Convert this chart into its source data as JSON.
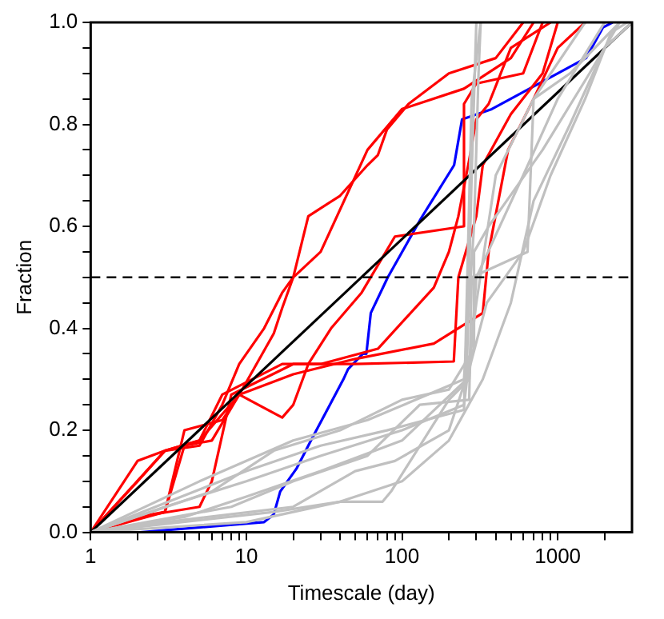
{
  "chart_data": {
    "type": "line",
    "xlabel": "Timescale (day)",
    "ylabel": "Fraction",
    "log": "x",
    "grid": false,
    "legend": false,
    "marker": "none",
    "line_style": "solid",
    "xlim": [
      1,
      3000
    ],
    "ylim": [
      0,
      1
    ],
    "xticks": [
      1,
      {
        "value": 2,
        "label": null
      },
      {
        "value": 3,
        "label": null
      },
      {
        "value": 4,
        "label": null
      },
      {
        "value": 5,
        "label": null
      },
      {
        "value": 6,
        "label": null
      },
      {
        "value": 7,
        "label": null
      },
      {
        "value": 8,
        "label": null
      },
      {
        "value": 9,
        "label": null
      },
      10,
      {
        "value": 20,
        "label": null
      },
      {
        "value": 30,
        "label": null
      },
      {
        "value": 40,
        "label": null
      },
      {
        "value": 50,
        "label": null
      },
      {
        "value": 60,
        "label": null
      },
      {
        "value": 70,
        "label": null
      },
      {
        "value": 80,
        "label": null
      },
      {
        "value": 90,
        "label": null
      },
      100,
      {
        "value": 200,
        "label": null
      },
      {
        "value": 300,
        "label": null
      },
      {
        "value": 400,
        "label": null
      },
      {
        "value": 500,
        "label": null
      },
      {
        "value": 600,
        "label": null
      },
      {
        "value": 700,
        "label": null
      },
      {
        "value": 800,
        "label": null
      },
      {
        "value": 900,
        "label": null
      },
      1000,
      {
        "value": 2000,
        "label": null
      }
    ],
    "yticks": [
      {
        "value": 0,
        "label": "0.0"
      },
      {
        "value": 0.05,
        "label": null
      },
      {
        "value": 0.1,
        "label": null
      },
      {
        "value": 0.15,
        "label": null
      },
      {
        "value": 0.2,
        "label": "0.2"
      },
      {
        "value": 0.25,
        "label": null
      },
      {
        "value": 0.3,
        "label": null
      },
      {
        "value": 0.35,
        "label": null
      },
      {
        "value": 0.4,
        "label": "0.4"
      },
      {
        "value": 0.45,
        "label": null
      },
      {
        "value": 0.5,
        "label": null
      },
      {
        "value": 0.55,
        "label": null
      },
      {
        "value": 0.6,
        "label": "0.6"
      },
      {
        "value": 0.65,
        "label": null
      },
      {
        "value": 0.7,
        "label": null
      },
      {
        "value": 0.75,
        "label": null
      },
      {
        "value": 0.8,
        "label": "0.8"
      },
      {
        "value": 0.85,
        "label": null
      },
      {
        "value": 0.9,
        "label": null
      },
      {
        "value": 0.95,
        "label": null
      },
      {
        "value": 1.0,
        "label": "1.0"
      }
    ],
    "ref_lines": [
      {
        "axis": "y",
        "value": 0.5,
        "color": "#000000",
        "line_style": "dashed"
      }
    ],
    "series": [
      {
        "color": "#c0c0c0",
        "x": [
          1,
          3,
          10,
          30,
          100,
          250,
          300,
          400,
          700,
          1500
        ],
        "values": [
          0,
          0.05,
          0.1,
          0.15,
          0.2,
          0.25,
          0.45,
          0.7,
          0.85,
          1.0
        ]
      },
      {
        "color": "#c0c0c0",
        "x": [
          1,
          5,
          10,
          20,
          60,
          250,
          290,
          310,
          320
        ],
        "values": [
          0,
          0.1,
          0.14,
          0.18,
          0.22,
          0.3,
          0.6,
          0.9,
          1.0
        ]
      },
      {
        "color": "#c0c0c0",
        "x": [
          1,
          4,
          10,
          30,
          100,
          260,
          280,
          300
        ],
        "values": [
          0,
          0.03,
          0.07,
          0.12,
          0.18,
          0.3,
          0.7,
          1.0
        ]
      },
      {
        "color": "#c0c0c0",
        "x": [
          1,
          10,
          40,
          75,
          85,
          200,
          270,
          300,
          600,
          1000,
          2000
        ],
        "values": [
          0,
          0.02,
          0.06,
          0.06,
          0.08,
          0.26,
          0.3,
          0.5,
          0.7,
          0.85,
          1.0
        ]
      },
      {
        "color": "#c0c0c0",
        "x": [
          1,
          8,
          20,
          60,
          130,
          270,
          280,
          640,
          700,
          1200,
          2500
        ],
        "values": [
          0,
          0.05,
          0.1,
          0.15,
          0.25,
          0.26,
          0.5,
          0.55,
          0.85,
          0.9,
          1.0
        ]
      },
      {
        "color": "#c0c0c0",
        "x": [
          1,
          15,
          40,
          100,
          200,
          330,
          500,
          700,
          1200,
          2000,
          3000
        ],
        "values": [
          0,
          0.04,
          0.06,
          0.1,
          0.18,
          0.3,
          0.45,
          0.65,
          0.8,
          0.95,
          1.0
        ]
      },
      {
        "color": "#c0c0c0",
        "x": [
          1,
          3,
          20,
          50,
          90,
          200,
          270,
          350,
          600,
          900,
          1500,
          2200,
          2800
        ],
        "values": [
          0,
          0.02,
          0.05,
          0.12,
          0.14,
          0.2,
          0.32,
          0.45,
          0.55,
          0.7,
          0.85,
          0.98,
          1.0
        ]
      },
      {
        "color": "#c0c0c0",
        "x": [
          1,
          6,
          15,
          40,
          100,
          200,
          290,
          290,
          360,
          800,
          1600,
          2500
        ],
        "values": [
          0,
          0.08,
          0.16,
          0.2,
          0.26,
          0.28,
          0.36,
          0.55,
          0.6,
          0.75,
          0.9,
          1.0
        ]
      },
      {
        "color": "#c0c0c0",
        "x": [
          1,
          10,
          30,
          80,
          250,
          270,
          280,
          320
        ],
        "values": [
          0,
          0.12,
          0.17,
          0.2,
          0.24,
          0.65,
          0.85,
          1.0
        ]
      },
      {
        "color": "#000000",
        "x": [
          1,
          3000
        ],
        "values": [
          0,
          1
        ]
      },
      {
        "color": "#ff0000",
        "x": [
          1,
          2,
          3,
          5,
          7,
          9,
          13,
          17,
          20,
          25,
          40,
          60,
          70,
          80,
          110,
          200,
          400,
          600
        ],
        "values": [
          0,
          0.14,
          0.16,
          0.17,
          0.25,
          0.33,
          0.4,
          0.47,
          0.5,
          0.62,
          0.66,
          0.72,
          0.74,
          0.79,
          0.84,
          0.9,
          0.93,
          1.0
        ]
      },
      {
        "color": "#ff0000",
        "x": [
          1,
          2,
          3,
          4,
          7,
          9,
          15,
          17,
          20,
          30,
          60,
          100,
          250,
          500,
          700
        ],
        "values": [
          0,
          0.03,
          0.04,
          0.2,
          0.22,
          0.27,
          0.39,
          0.44,
          0.5,
          0.55,
          0.75,
          0.83,
          0.87,
          0.93,
          1.0
        ]
      },
      {
        "color": "#ff0000",
        "x": [
          1,
          3,
          5,
          7,
          17,
          30,
          70,
          160,
          200,
          230,
          270,
          300,
          360,
          500,
          900
        ],
        "values": [
          0,
          0.16,
          0.18,
          0.27,
          0.33,
          0.33,
          0.36,
          0.48,
          0.55,
          0.62,
          0.73,
          0.81,
          0.84,
          0.95,
          1.0
        ]
      },
      {
        "color": "#ff0000",
        "x": [
          1,
          2,
          5,
          6,
          8,
          20,
          50,
          215,
          230,
          300,
          330,
          500,
          800,
          1000
        ],
        "values": [
          0,
          0.03,
          0.05,
          0.1,
          0.27,
          0.33,
          0.33,
          0.335,
          0.5,
          0.62,
          0.72,
          0.82,
          0.9,
          1.0
        ]
      },
      {
        "color": "#ff0000",
        "x": [
          1,
          3,
          4,
          6,
          9,
          17,
          20,
          25,
          35,
          55,
          90,
          250,
          250,
          300,
          600,
          800
        ],
        "values": [
          0,
          0.04,
          0.17,
          0.18,
          0.27,
          0.225,
          0.25,
          0.33,
          0.4,
          0.47,
          0.58,
          0.6,
          0.84,
          0.88,
          0.9,
          1.0
        ]
      },
      {
        "color": "#ff0000",
        "x": [
          1,
          2,
          3,
          5,
          9,
          20,
          50,
          160,
          330,
          360,
          480,
          700,
          1000,
          1500
        ],
        "values": [
          0,
          0.1,
          0.16,
          0.18,
          0.27,
          0.31,
          0.34,
          0.37,
          0.43,
          0.55,
          0.75,
          0.85,
          0.95,
          1.0
        ]
      },
      {
        "color": "#0000ff",
        "x": [
          2.08,
          13,
          15,
          16.5,
          21,
          26,
          42,
          45,
          56,
          59,
          63,
          81,
          132,
          216,
          243,
          377,
          1520,
          1950,
          2250
        ],
        "values": [
          0,
          0.02,
          0.035,
          0.08,
          0.125,
          0.18,
          0.3,
          0.32,
          0.35,
          0.35,
          0.43,
          0.5,
          0.615,
          0.72,
          0.81,
          0.83,
          0.93,
          0.99,
          1.0
        ]
      }
    ]
  }
}
